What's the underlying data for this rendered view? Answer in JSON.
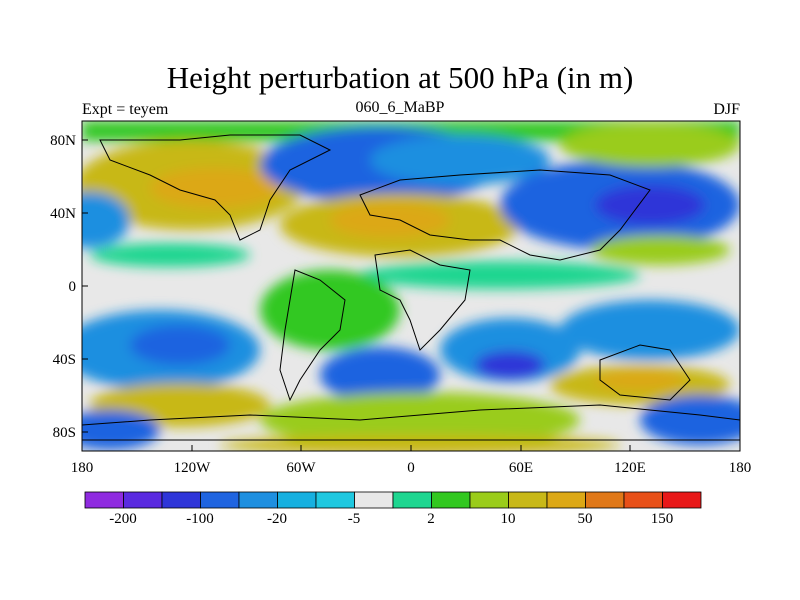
{
  "header": {
    "title": "Height perturbation at 500 hPa (in m)",
    "left_label": "Expt = teyem",
    "center_label": "060_6_MaBP",
    "right_label": "DJF"
  },
  "axes": {
    "lat_labels": [
      "80N",
      "40N",
      "0",
      "40S",
      "80S"
    ],
    "lon_labels": [
      "180",
      "120W",
      "60W",
      "0",
      "60E",
      "120E",
      "180"
    ]
  },
  "colorbar": {
    "colors": [
      "#8f2be0",
      "#5a2ae0",
      "#2e35d8",
      "#1f64e0",
      "#1e8fe0",
      "#16b0e0",
      "#1fc8e0",
      "#e8e8e8",
      "#1ed690",
      "#32c820",
      "#9acc1a",
      "#c8b818",
      "#dca816",
      "#e07818",
      "#e85018",
      "#e81818"
    ],
    "tick_labels": [
      "-200",
      "-100",
      "-20",
      "-5",
      "2",
      "10",
      "50",
      "150"
    ]
  }
}
